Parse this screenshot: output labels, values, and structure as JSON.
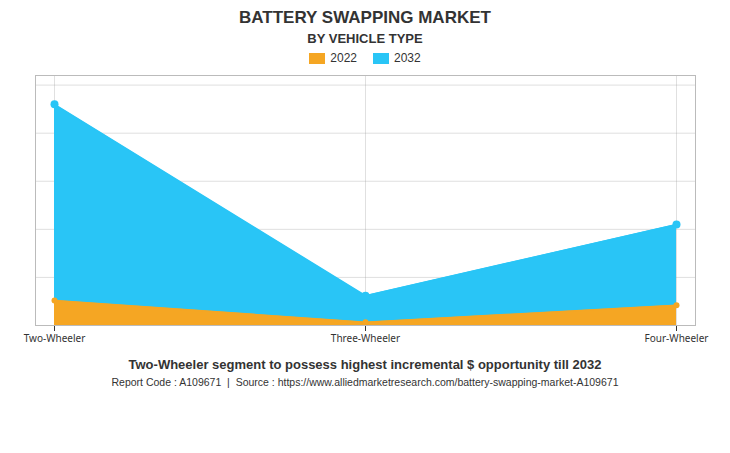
{
  "chart_data": {
    "type": "area",
    "title": "BATTERY SWAPPING MARKET",
    "subtitle": "BY VEHICLE TYPE",
    "categories": [
      "Two-Wheeler",
      "Three-Wheeler",
      "Four-Wheeler"
    ],
    "series": [
      {
        "name": "2022",
        "color": "#F5A623",
        "values": [
          0.52,
          0.07,
          0.42
        ]
      },
      {
        "name": "2032",
        "color": "#29C5F6",
        "values": [
          4.6,
          0.62,
          2.1
        ]
      }
    ],
    "ylim": [
      0,
      5.2
    ],
    "yticks": [
      0,
      1,
      2,
      3,
      4,
      5
    ],
    "grid": true,
    "tick_labels": "x",
    "marker": "circle",
    "legend": "top",
    "annotations": [
      "Two-Wheeler segment to possess highest incremental $ opportunity till 2032",
      "Report Code : A109671  |  Source : https://www.alliedmarketresearch.com/battery-swapping-market-A109671"
    ]
  }
}
